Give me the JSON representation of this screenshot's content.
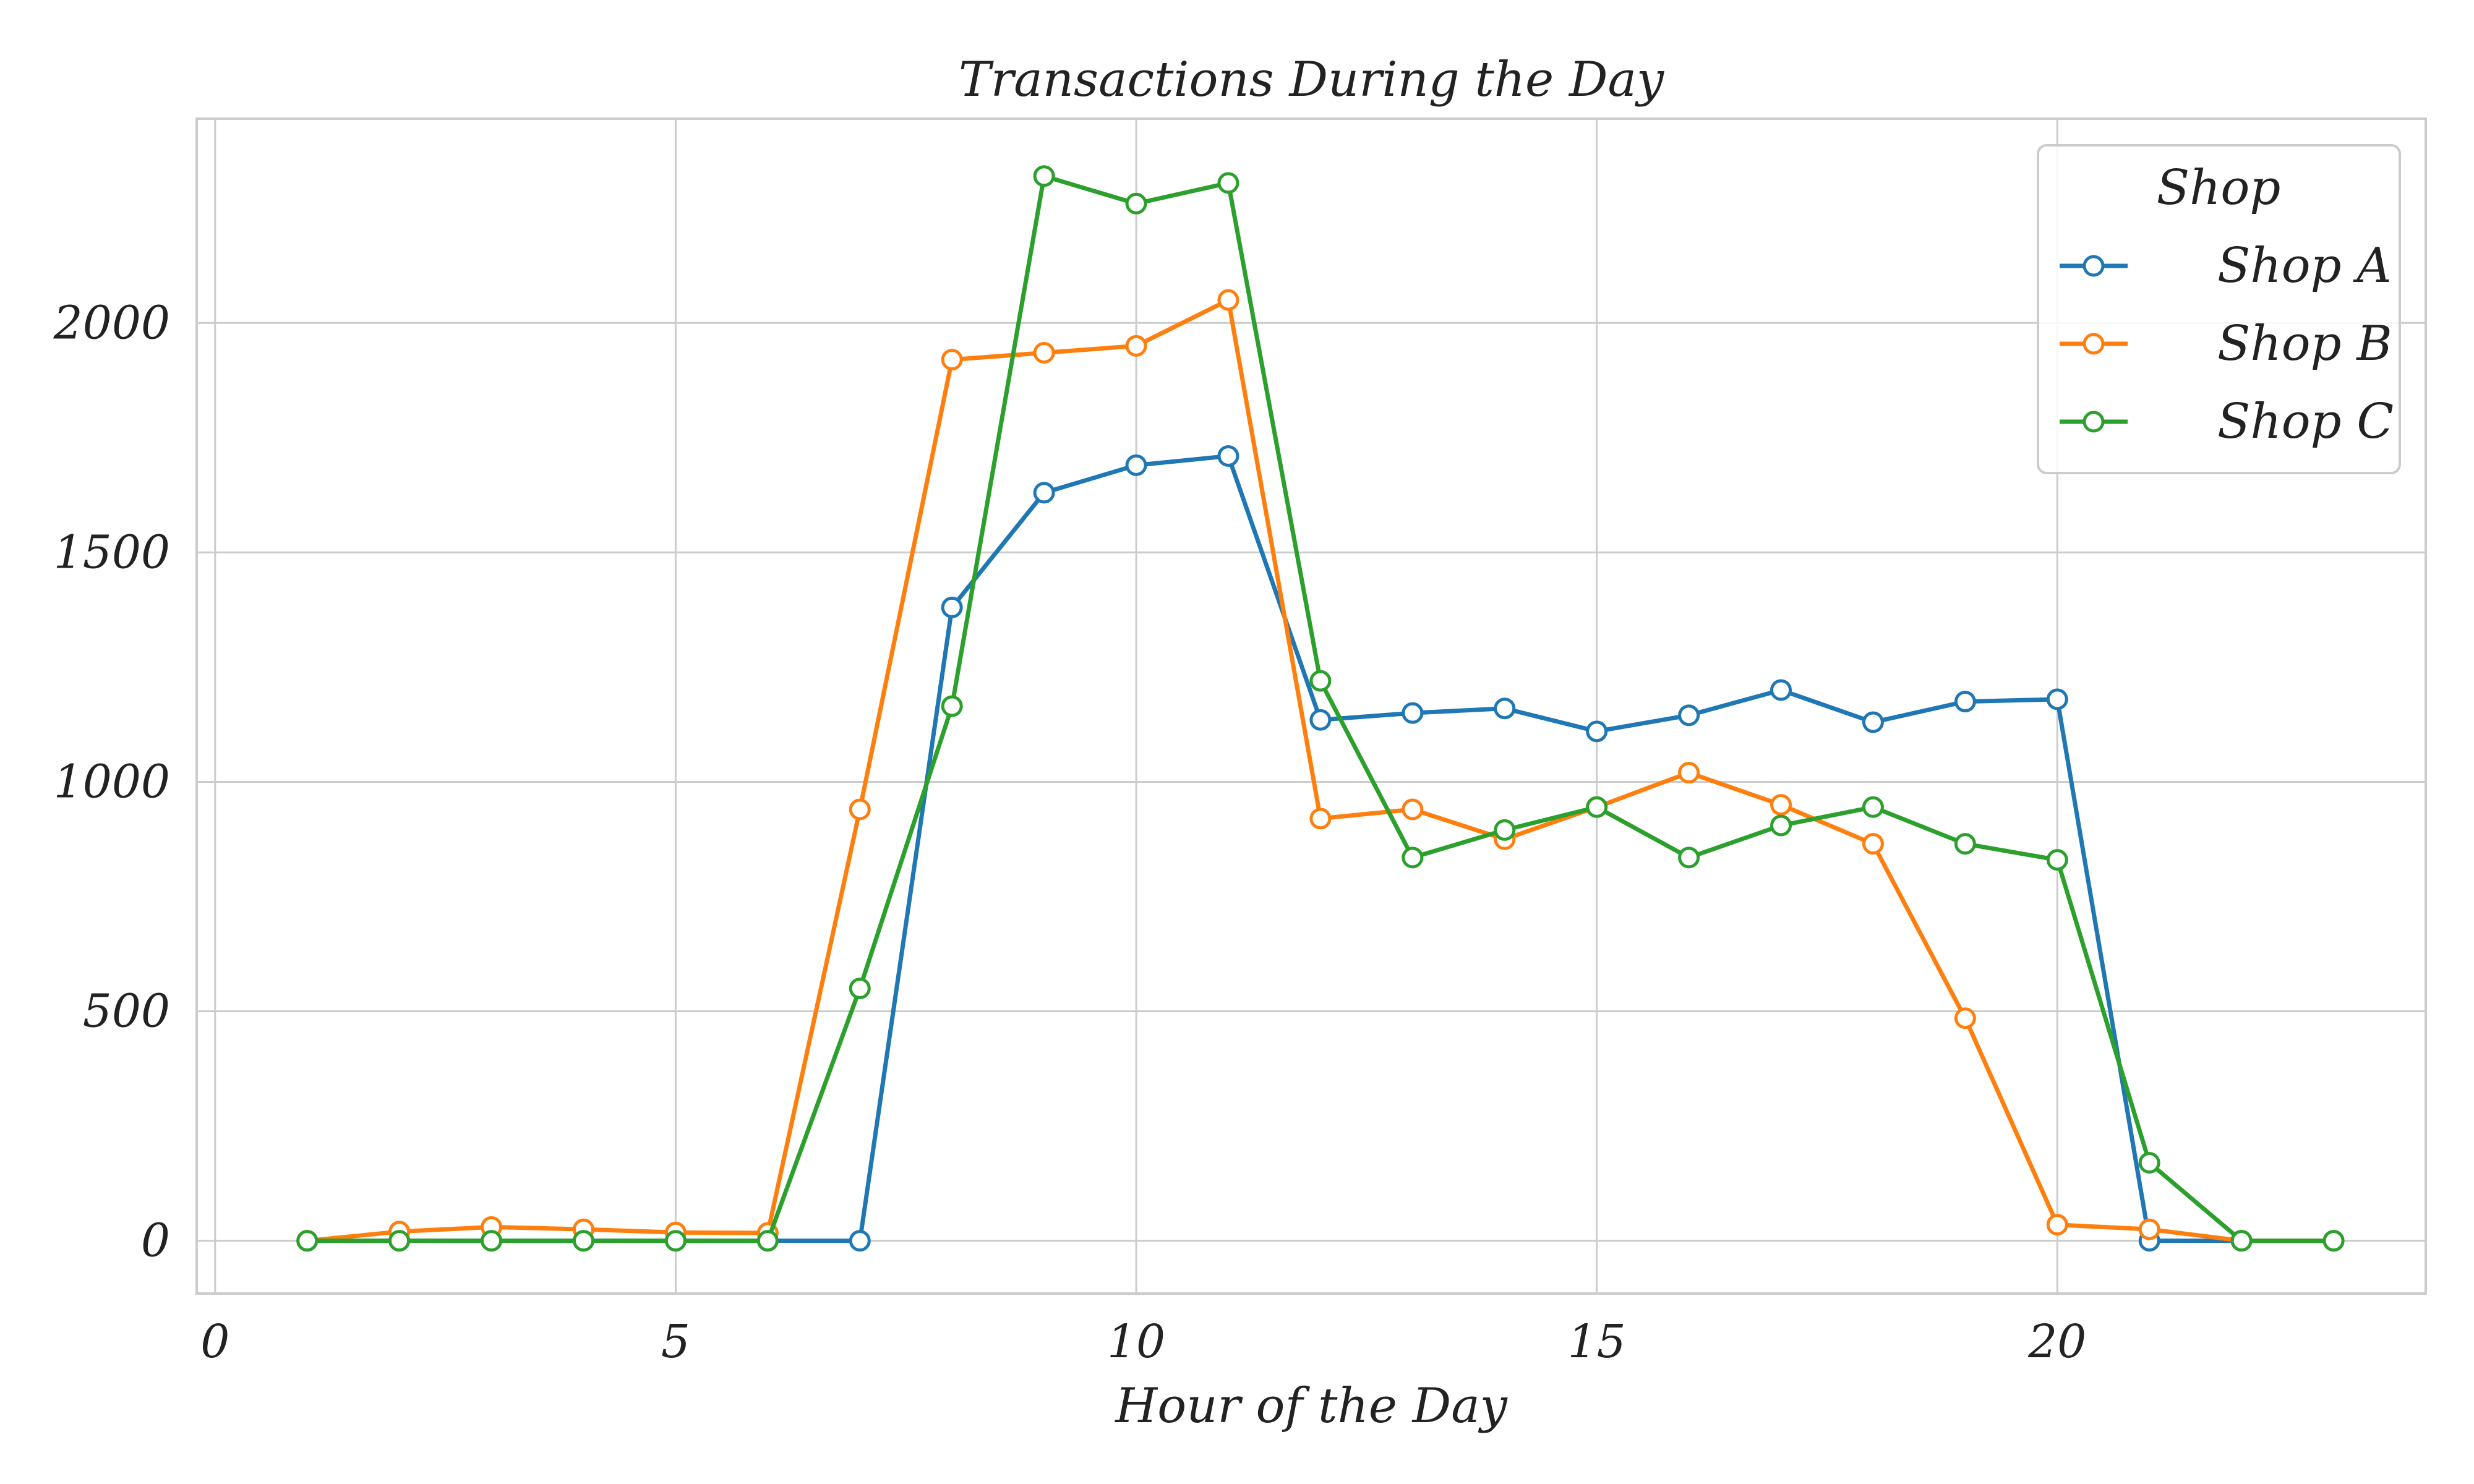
{
  "chart_data": {
    "type": "line",
    "title": "Transactions During the Day",
    "xlabel": "Hour of the Day",
    "ylabel": "",
    "xlim": [
      -0.2,
      24
    ],
    "ylim": [
      -115,
      2445
    ],
    "xticks": [
      0,
      5,
      10,
      15,
      20
    ],
    "yticks": [
      0,
      500,
      1000,
      1500,
      2000
    ],
    "grid": true,
    "legend": {
      "title": "Shop",
      "position": "top-right"
    },
    "series": [
      {
        "name": "Shop A",
        "color": "#1f77b4",
        "x": [
          1,
          2,
          3,
          4,
          5,
          6,
          7,
          8,
          9,
          10,
          11,
          12,
          13,
          14,
          15,
          16,
          17,
          18,
          19,
          20,
          21,
          22,
          23
        ],
        "y": [
          0,
          0,
          0,
          0,
          0,
          0,
          0,
          1380,
          1630,
          1690,
          1710,
          1135,
          1150,
          1160,
          1110,
          1145,
          1200,
          1130,
          1175,
          1180,
          0,
          0,
          0
        ]
      },
      {
        "name": "Shop B",
        "color": "#ff7f0e",
        "x": [
          1,
          2,
          3,
          4,
          5,
          6,
          7,
          8,
          9,
          10,
          11,
          12,
          13,
          14,
          15,
          16,
          17,
          18,
          19,
          20,
          21,
          22,
          23
        ],
        "y": [
          0,
          20,
          30,
          25,
          18,
          17,
          940,
          1920,
          1935,
          1950,
          2050,
          920,
          940,
          875,
          945,
          1020,
          950,
          865,
          485,
          35,
          25,
          0,
          0
        ]
      },
      {
        "name": "Shop C",
        "color": "#2ca02c",
        "x": [
          1,
          2,
          3,
          4,
          5,
          6,
          7,
          8,
          9,
          10,
          11,
          12,
          13,
          14,
          15,
          16,
          17,
          18,
          19,
          20,
          21,
          22,
          23
        ],
        "y": [
          0,
          0,
          0,
          0,
          0,
          0,
          550,
          1165,
          2320,
          2260,
          2305,
          1220,
          835,
          895,
          945,
          835,
          905,
          945,
          865,
          830,
          170,
          0,
          0
        ]
      }
    ]
  }
}
